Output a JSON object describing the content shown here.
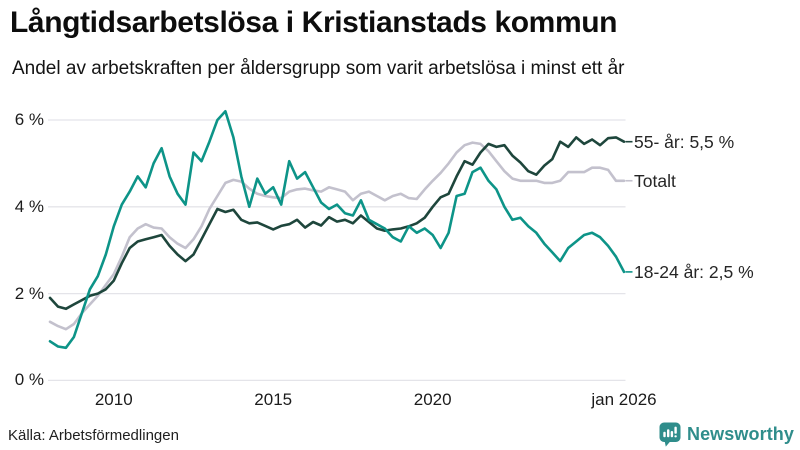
{
  "header": {},
  "source": {
    "label": "Källa: Arbetsförmedlingen"
  },
  "branding": {
    "name": "Newsworthy",
    "color": "#2f8d8b",
    "icon": "speech-bubble-bar-chart"
  },
  "chart_data": {
    "type": "line",
    "title": "Långtidsarbetslösa i Kristianstads kommun",
    "subtitle": "Andel av arbetskraften per åldersgrupp som varit arbetslösa i minst ett år",
    "unit": "%",
    "xlabel": "",
    "ylabel": "",
    "xlim": [
      2008,
      2026
    ],
    "ylim": [
      0,
      6
    ],
    "grid": "horizontal",
    "legend_position": "right-end-labels",
    "x_ticks": [
      {
        "year": 2010,
        "label": "2010"
      },
      {
        "year": 2015,
        "label": "2015"
      },
      {
        "year": 2020,
        "label": "2020"
      },
      {
        "year": 2026,
        "label": "jan 2026"
      }
    ],
    "y_ticks": [
      {
        "value": 0,
        "label": "0 %"
      },
      {
        "value": 2,
        "label": "2 %"
      },
      {
        "value": 4,
        "label": "4 %"
      },
      {
        "value": 6,
        "label": "6 %"
      }
    ],
    "series": [
      {
        "name": "Totalt",
        "end_label": "Totalt",
        "end_value": 4.6,
        "color": "#c3c1cd",
        "points": [
          [
            2008,
            1.35
          ],
          [
            2008.25,
            1.25
          ],
          [
            2008.5,
            1.18
          ],
          [
            2008.75,
            1.3
          ],
          [
            2009,
            1.55
          ],
          [
            2009.25,
            1.75
          ],
          [
            2009.5,
            1.95
          ],
          [
            2009.75,
            2.2
          ],
          [
            2010,
            2.45
          ],
          [
            2010.25,
            2.85
          ],
          [
            2010.5,
            3.3
          ],
          [
            2010.75,
            3.5
          ],
          [
            2011,
            3.6
          ],
          [
            2011.25,
            3.52
          ],
          [
            2011.5,
            3.5
          ],
          [
            2011.75,
            3.3
          ],
          [
            2012,
            3.15
          ],
          [
            2012.25,
            3.05
          ],
          [
            2012.5,
            3.25
          ],
          [
            2012.75,
            3.55
          ],
          [
            2013,
            3.95
          ],
          [
            2013.25,
            4.25
          ],
          [
            2013.5,
            4.55
          ],
          [
            2013.75,
            4.62
          ],
          [
            2014,
            4.58
          ],
          [
            2014.25,
            4.42
          ],
          [
            2014.5,
            4.3
          ],
          [
            2014.75,
            4.25
          ],
          [
            2015,
            4.22
          ],
          [
            2015.25,
            4.2
          ],
          [
            2015.5,
            4.35
          ],
          [
            2015.75,
            4.4
          ],
          [
            2016,
            4.42
          ],
          [
            2016.25,
            4.38
          ],
          [
            2016.5,
            4.35
          ],
          [
            2016.75,
            4.45
          ],
          [
            2017,
            4.4
          ],
          [
            2017.25,
            4.35
          ],
          [
            2017.5,
            4.15
          ],
          [
            2017.75,
            4.3
          ],
          [
            2018,
            4.35
          ],
          [
            2018.25,
            4.25
          ],
          [
            2018.5,
            4.15
          ],
          [
            2018.75,
            4.25
          ],
          [
            2019,
            4.3
          ],
          [
            2019.25,
            4.2
          ],
          [
            2019.5,
            4.18
          ],
          [
            2019.75,
            4.4
          ],
          [
            2020,
            4.6
          ],
          [
            2020.25,
            4.78
          ],
          [
            2020.5,
            5.0
          ],
          [
            2020.75,
            5.25
          ],
          [
            2021,
            5.42
          ],
          [
            2021.25,
            5.48
          ],
          [
            2021.5,
            5.45
          ],
          [
            2021.75,
            5.28
          ],
          [
            2022,
            5.05
          ],
          [
            2022.25,
            4.82
          ],
          [
            2022.5,
            4.65
          ],
          [
            2022.75,
            4.6
          ],
          [
            2023,
            4.6
          ],
          [
            2023.25,
            4.6
          ],
          [
            2023.5,
            4.55
          ],
          [
            2023.75,
            4.55
          ],
          [
            2024,
            4.6
          ],
          [
            2024.25,
            4.8
          ],
          [
            2024.5,
            4.8
          ],
          [
            2024.75,
            4.8
          ],
          [
            2025,
            4.9
          ],
          [
            2025.25,
            4.9
          ],
          [
            2025.5,
            4.85
          ],
          [
            2025.75,
            4.6
          ],
          [
            2026,
            4.6
          ]
        ]
      },
      {
        "name": "55- år",
        "end_label": "55- år: 5,5 %",
        "end_value": 5.5,
        "color": "#1e463c",
        "points": [
          [
            2008,
            1.9
          ],
          [
            2008.25,
            1.7
          ],
          [
            2008.5,
            1.65
          ],
          [
            2008.75,
            1.75
          ],
          [
            2009,
            1.85
          ],
          [
            2009.25,
            1.95
          ],
          [
            2009.5,
            2.0
          ],
          [
            2009.75,
            2.1
          ],
          [
            2010,
            2.3
          ],
          [
            2010.25,
            2.7
          ],
          [
            2010.5,
            3.05
          ],
          [
            2010.75,
            3.2
          ],
          [
            2011,
            3.25
          ],
          [
            2011.25,
            3.3
          ],
          [
            2011.5,
            3.35
          ],
          [
            2011.75,
            3.1
          ],
          [
            2012,
            2.9
          ],
          [
            2012.25,
            2.75
          ],
          [
            2012.5,
            2.9
          ],
          [
            2012.75,
            3.25
          ],
          [
            2013,
            3.6
          ],
          [
            2013.25,
            3.95
          ],
          [
            2013.5,
            3.88
          ],
          [
            2013.75,
            3.93
          ],
          [
            2014,
            3.7
          ],
          [
            2014.25,
            3.62
          ],
          [
            2014.5,
            3.64
          ],
          [
            2014.75,
            3.56
          ],
          [
            2015,
            3.48
          ],
          [
            2015.25,
            3.56
          ],
          [
            2015.5,
            3.6
          ],
          [
            2015.75,
            3.7
          ],
          [
            2016,
            3.52
          ],
          [
            2016.25,
            3.65
          ],
          [
            2016.5,
            3.57
          ],
          [
            2016.75,
            3.76
          ],
          [
            2017,
            3.66
          ],
          [
            2017.25,
            3.7
          ],
          [
            2017.5,
            3.62
          ],
          [
            2017.75,
            3.8
          ],
          [
            2018,
            3.65
          ],
          [
            2018.25,
            3.5
          ],
          [
            2018.5,
            3.45
          ],
          [
            2018.75,
            3.48
          ],
          [
            2019,
            3.5
          ],
          [
            2019.25,
            3.55
          ],
          [
            2019.5,
            3.62
          ],
          [
            2019.75,
            3.75
          ],
          [
            2020,
            4.0
          ],
          [
            2020.25,
            4.22
          ],
          [
            2020.5,
            4.3
          ],
          [
            2020.75,
            4.7
          ],
          [
            2021,
            5.05
          ],
          [
            2021.25,
            4.97
          ],
          [
            2021.5,
            5.25
          ],
          [
            2021.75,
            5.45
          ],
          [
            2022,
            5.38
          ],
          [
            2022.25,
            5.42
          ],
          [
            2022.5,
            5.18
          ],
          [
            2022.75,
            5.02
          ],
          [
            2023,
            4.82
          ],
          [
            2023.25,
            4.74
          ],
          [
            2023.5,
            4.95
          ],
          [
            2023.75,
            5.1
          ],
          [
            2024,
            5.5
          ],
          [
            2024.25,
            5.38
          ],
          [
            2024.5,
            5.6
          ],
          [
            2024.75,
            5.45
          ],
          [
            2025,
            5.55
          ],
          [
            2025.25,
            5.42
          ],
          [
            2025.5,
            5.58
          ],
          [
            2025.75,
            5.6
          ],
          [
            2026,
            5.5
          ]
        ]
      },
      {
        "name": "18-24 år",
        "end_label": "18-24 år: 2,5 %",
        "end_value": 2.5,
        "color": "#0d9488",
        "points": [
          [
            2008,
            0.9
          ],
          [
            2008.25,
            0.78
          ],
          [
            2008.5,
            0.75
          ],
          [
            2008.75,
            1.0
          ],
          [
            2009,
            1.55
          ],
          [
            2009.25,
            2.1
          ],
          [
            2009.5,
            2.4
          ],
          [
            2009.75,
            2.9
          ],
          [
            2010,
            3.55
          ],
          [
            2010.25,
            4.05
          ],
          [
            2010.5,
            4.35
          ],
          [
            2010.75,
            4.7
          ],
          [
            2011,
            4.45
          ],
          [
            2011.25,
            5.0
          ],
          [
            2011.5,
            5.35
          ],
          [
            2011.75,
            4.7
          ],
          [
            2012,
            4.3
          ],
          [
            2012.25,
            4.05
          ],
          [
            2012.5,
            5.25
          ],
          [
            2012.75,
            5.05
          ],
          [
            2013,
            5.5
          ],
          [
            2013.25,
            6.0
          ],
          [
            2013.5,
            6.2
          ],
          [
            2013.75,
            5.6
          ],
          [
            2014,
            4.7
          ],
          [
            2014.25,
            4.0
          ],
          [
            2014.5,
            4.65
          ],
          [
            2014.75,
            4.3
          ],
          [
            2015,
            4.45
          ],
          [
            2015.25,
            4.05
          ],
          [
            2015.5,
            5.05
          ],
          [
            2015.75,
            4.65
          ],
          [
            2016,
            4.8
          ],
          [
            2016.25,
            4.45
          ],
          [
            2016.5,
            4.1
          ],
          [
            2016.75,
            3.95
          ],
          [
            2017,
            4.05
          ],
          [
            2017.25,
            3.85
          ],
          [
            2017.5,
            3.8
          ],
          [
            2017.75,
            4.15
          ],
          [
            2018,
            3.7
          ],
          [
            2018.25,
            3.6
          ],
          [
            2018.5,
            3.5
          ],
          [
            2018.75,
            3.3
          ],
          [
            2019,
            3.2
          ],
          [
            2019.25,
            3.55
          ],
          [
            2019.5,
            3.4
          ],
          [
            2019.75,
            3.5
          ],
          [
            2020,
            3.35
          ],
          [
            2020.25,
            3.05
          ],
          [
            2020.5,
            3.4
          ],
          [
            2020.75,
            4.25
          ],
          [
            2021,
            4.3
          ],
          [
            2021.25,
            4.8
          ],
          [
            2021.5,
            4.9
          ],
          [
            2021.75,
            4.6
          ],
          [
            2022,
            4.4
          ],
          [
            2022.25,
            4.0
          ],
          [
            2022.5,
            3.7
          ],
          [
            2022.75,
            3.75
          ],
          [
            2023,
            3.55
          ],
          [
            2023.25,
            3.4
          ],
          [
            2023.5,
            3.15
          ],
          [
            2023.75,
            2.95
          ],
          [
            2024,
            2.75
          ],
          [
            2024.25,
            3.05
          ],
          [
            2024.5,
            3.2
          ],
          [
            2024.75,
            3.35
          ],
          [
            2025,
            3.4
          ],
          [
            2025.25,
            3.3
          ],
          [
            2025.5,
            3.1
          ],
          [
            2025.75,
            2.85
          ],
          [
            2026,
            2.5
          ]
        ]
      }
    ]
  }
}
